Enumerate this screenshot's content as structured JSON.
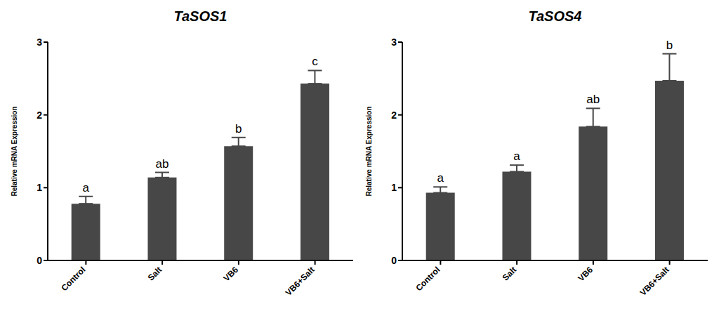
{
  "chart_data": [
    {
      "type": "bar",
      "title": "TaSOS1",
      "ylabel": "Relative mRNA Expression",
      "categories": [
        "Control",
        "Salt",
        "VB6",
        "VB6+Salt"
      ],
      "values": [
        0.78,
        1.14,
        1.57,
        2.43
      ],
      "errors": [
        0.1,
        0.07,
        0.12,
        0.18
      ],
      "annotations": [
        "a",
        "ab",
        "b",
        "c"
      ],
      "color": "#474747",
      "ylim": [
        0,
        3
      ],
      "yticks": [
        0,
        1,
        2,
        3
      ],
      "grid": false
    },
    {
      "type": "bar",
      "title": "TaSOS4",
      "ylabel": "Relative mRNA Expression",
      "categories": [
        "Control",
        "Salt",
        "VB6",
        "VB6+Salt"
      ],
      "values": [
        0.93,
        1.22,
        1.84,
        2.47
      ],
      "errors": [
        0.08,
        0.09,
        0.25,
        0.37
      ],
      "annotations": [
        "a",
        "a",
        "ab",
        "b"
      ],
      "color": "#474747",
      "ylim": [
        0,
        3
      ],
      "yticks": [
        0,
        1,
        2,
        3
      ],
      "grid": false
    }
  ]
}
